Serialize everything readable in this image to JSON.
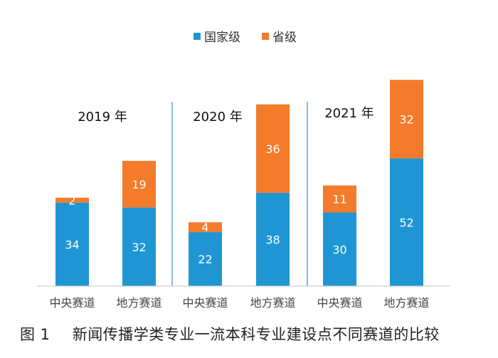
{
  "chart_data": {
    "type": "bar",
    "stacked": true,
    "title": "",
    "xlabel": "",
    "ylabel": "",
    "ylim": [
      0,
      84
    ],
    "grid": false,
    "legend_position": "top-center",
    "legend": [
      "国家级",
      "省级"
    ],
    "groups": [
      {
        "label": "2019 年",
        "categories": [
          "中央赛道",
          "地方赛道"
        ]
      },
      {
        "label": "2020 年",
        "categories": [
          "中央赛道",
          "地方赛道"
        ]
      },
      {
        "label": "2021 年",
        "categories": [
          "中央赛道",
          "地方赛道"
        ]
      }
    ],
    "categories": [
      "中央赛道",
      "地方赛道",
      "中央赛道",
      "地方赛道",
      "中央赛道",
      "地方赛道"
    ],
    "series": [
      {
        "name": "国家级",
        "color": "#1f96d3",
        "values": [
          34,
          32,
          22,
          38,
          30,
          52
        ]
      },
      {
        "name": "省级",
        "color": "#f47b2b",
        "values": [
          2,
          19,
          4,
          36,
          11,
          32
        ]
      }
    ]
  },
  "caption": {
    "figure_number": "图 1",
    "text": "新闻传播学类专业一流本科专业建设点不同赛道的比较"
  }
}
